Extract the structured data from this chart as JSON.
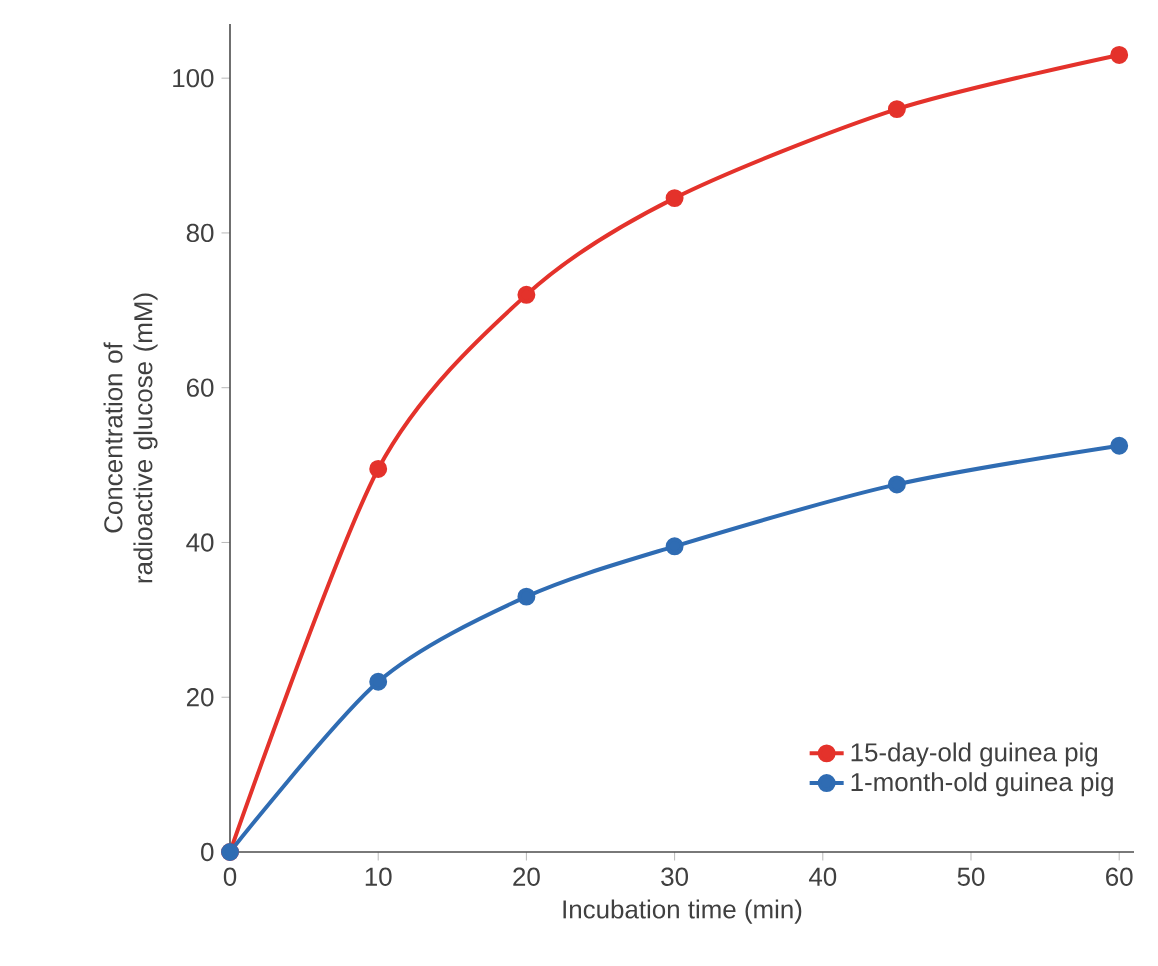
{
  "chart_data": {
    "type": "line",
    "xlabel": "Incubation time (min)",
    "ylabel": "Concentration of radioactive glucose (mM)",
    "series": [
      {
        "name": "15-day-old guinea pig",
        "color": "#e4322b",
        "x": [
          0,
          10,
          20,
          30,
          45,
          60
        ],
        "values": [
          0,
          49.5,
          72,
          84.5,
          96,
          103
        ]
      },
      {
        "name": "1-month-old guinea pig",
        "color": "#2f6cb3",
        "x": [
          0,
          10,
          20,
          30,
          45,
          60
        ],
        "values": [
          0,
          22,
          33,
          39.5,
          47.5,
          52.5
        ]
      }
    ],
    "xlim": [
      0,
      61
    ],
    "ylim": [
      0,
      107
    ],
    "xticks": [
      0,
      10,
      20,
      30,
      40,
      50,
      60
    ],
    "yticks": [
      0,
      20,
      40,
      60,
      80,
      100
    ],
    "marker": "circle",
    "line_style": "solid",
    "legend": "bottom right",
    "grid": false
  }
}
